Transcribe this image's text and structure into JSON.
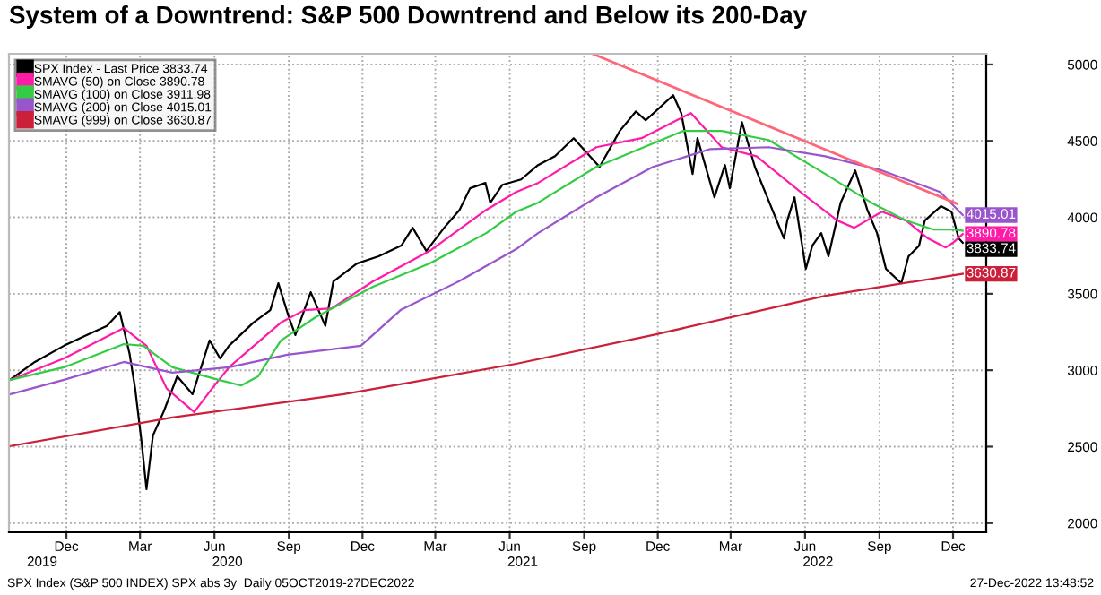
{
  "chart_data": {
    "type": "line",
    "title": "System of a Downtrend: S&P 500 Downtrend and Below its 200-Day",
    "xlim": [
      "2019-10-05",
      "2023-01-25"
    ],
    "ylim": [
      1940,
      5070
    ],
    "xticks": [
      {
        "value": "2019-12-15",
        "label": "Dec"
      },
      {
        "value": "2020-03-15",
        "label": "Mar"
      },
      {
        "value": "2020-06-15",
        "label": "Jun"
      },
      {
        "value": "2020-09-15",
        "label": "Sep"
      },
      {
        "value": "2020-12-15",
        "label": "Dec"
      },
      {
        "value": "2021-03-15",
        "label": "Mar"
      },
      {
        "value": "2021-06-15",
        "label": "Jun"
      },
      {
        "value": "2021-09-15",
        "label": "Sep"
      },
      {
        "value": "2021-12-15",
        "label": "Dec"
      },
      {
        "value": "2022-03-15",
        "label": "Mar"
      },
      {
        "value": "2022-06-15",
        "label": "Jun"
      },
      {
        "value": "2022-09-15",
        "label": "Sep"
      },
      {
        "value": "2022-12-15",
        "label": "Dec"
      }
    ],
    "x2lim": [
      "2019-10-05",
      "2023-01-25"
    ],
    "x2ticks": [
      {
        "value": "2019-11-15",
        "label": "2019"
      },
      {
        "value": "2020-07-01",
        "label": "2020"
      },
      {
        "value": "2021-07-01",
        "label": "2021"
      },
      {
        "value": "2022-07-01",
        "label": "2022"
      }
    ],
    "yticks": [
      2000,
      2500,
      3000,
      3500,
      4000,
      4500,
      5000
    ],
    "grid": true,
    "legend": "top left",
    "marker": "none",
    "line_style": "solid",
    "series": [
      {
        "name": "SPX Index - Last Price 3833.74",
        "color": "#000000",
        "x": [
          "2019-10-07",
          "2019-11-06",
          "2019-12-12",
          "2020-01-09",
          "2020-02-03",
          "2020-02-19",
          "2020-03-02",
          "2020-03-09",
          "2020-03-17",
          "2020-03-23",
          "2020-03-31",
          "2020-04-13",
          "2020-04-30",
          "2020-05-19",
          "2020-06-09",
          "2020-06-22",
          "2020-07-03",
          "2020-08-02",
          "2020-08-23",
          "2020-09-02",
          "2020-09-15",
          "2020-09-23",
          "2020-10-12",
          "2020-10-30",
          "2020-11-09",
          "2020-12-08",
          "2021-01-04",
          "2021-02-01",
          "2021-02-15",
          "2021-03-04",
          "2021-03-26",
          "2021-04-14",
          "2021-04-27",
          "2021-05-16",
          "2021-05-22",
          "2021-06-06",
          "2021-06-29",
          "2021-07-20",
          "2021-08-10",
          "2021-09-02",
          "2021-10-04",
          "2021-10-29",
          "2021-11-18",
          "2021-11-30",
          "2021-12-10",
          "2022-01-03",
          "2022-01-13",
          "2022-01-27",
          "2022-02-02",
          "2022-02-23",
          "2022-03-08",
          "2022-03-14",
          "2022-03-29",
          "2022-04-14",
          "2022-05-02",
          "2022-05-20",
          "2022-05-24",
          "2022-06-02",
          "2022-06-16",
          "2022-06-24",
          "2022-07-05",
          "2022-07-14",
          "2022-07-29",
          "2022-08-16",
          "2022-08-31",
          "2022-09-12",
          "2022-09-23",
          "2022-10-12",
          "2022-10-21",
          "2022-11-03",
          "2022-11-10",
          "2022-11-30",
          "2022-12-13",
          "2022-12-22",
          "2022-12-27"
        ],
        "values": [
          2940,
          3054,
          3160,
          3230,
          3290,
          3380,
          3110,
          2880,
          2527,
          2222,
          2574,
          2726,
          2960,
          2843,
          3195,
          3077,
          3160,
          3311,
          3393,
          3569,
          3347,
          3230,
          3510,
          3290,
          3581,
          3698,
          3745,
          3815,
          3932,
          3780,
          3932,
          4049,
          4190,
          4225,
          4096,
          4213,
          4248,
          4342,
          4400,
          4518,
          4330,
          4565,
          4693,
          4635,
          4682,
          4799,
          4682,
          4284,
          4518,
          4131,
          4342,
          4190,
          4623,
          4330,
          4096,
          3862,
          3979,
          4131,
          3663,
          3815,
          3897,
          3745,
          4096,
          4307,
          4049,
          3897,
          3663,
          3569,
          3745,
          3815,
          3979,
          4073,
          4037,
          3862,
          3833.74
        ],
        "value_labels": [
          null,
          null,
          null,
          null,
          null,
          null,
          null,
          null,
          null,
          null,
          null,
          null,
          null,
          null,
          null,
          null,
          null,
          null,
          null,
          null,
          null,
          null,
          null,
          null,
          null,
          null,
          null,
          null,
          null,
          null,
          null,
          null,
          null,
          null,
          null,
          null,
          null,
          null,
          null,
          null,
          null,
          null,
          null,
          null,
          null,
          null,
          null,
          null,
          null,
          null,
          null,
          null,
          null,
          null,
          null,
          null,
          null,
          null,
          null,
          null,
          null,
          null,
          null,
          null,
          null,
          null,
          null,
          null,
          null,
          null,
          null,
          null,
          null,
          null,
          "3833.74"
        ]
      },
      {
        "name": "SMAVG (50) on Close 3890.78",
        "color": "#ff1aa8",
        "x": [
          "2019-10-07",
          "2019-12-12",
          "2020-02-24",
          "2020-03-23",
          "2020-04-17",
          "2020-05-21",
          "2020-06-12",
          "2020-07-03",
          "2020-09-05",
          "2020-10-04",
          "2020-11-07",
          "2020-12-28",
          "2021-03-08",
          "2021-05-17",
          "2021-06-23",
          "2021-07-20",
          "2021-09-30",
          "2021-11-25",
          "2022-01-25",
          "2022-03-04",
          "2022-04-16",
          "2022-06-12",
          "2022-07-25",
          "2022-08-15",
          "2022-09-18",
          "2022-10-18",
          "2022-11-14",
          "2022-12-06",
          "2022-12-16",
          "2022-12-27"
        ],
        "values": [
          2937,
          3077,
          3276,
          3160,
          2880,
          2726,
          2880,
          3019,
          3311,
          3393,
          3405,
          3581,
          3780,
          4049,
          4166,
          4225,
          4459,
          4518,
          4682,
          4459,
          4400,
          4155,
          3979,
          3932,
          4037,
          3979,
          3862,
          3803,
          3838,
          3890.78
        ],
        "value_labels": [
          null,
          null,
          null,
          null,
          null,
          null,
          null,
          null,
          null,
          null,
          null,
          null,
          null,
          null,
          null,
          null,
          null,
          null,
          null,
          null,
          null,
          null,
          null,
          null,
          null,
          null,
          null,
          null,
          null,
          "3890.78"
        ]
      },
      {
        "name": "SMAVG (100) on Close 3911.98",
        "color": "#33cc44",
        "x": [
          "2019-10-07",
          "2019-12-12",
          "2020-02-24",
          "2020-03-19",
          "2020-04-24",
          "2020-06-20",
          "2020-07-18",
          "2020-08-08",
          "2020-09-05",
          "2020-10-18",
          "2020-12-28",
          "2021-03-08",
          "2021-05-17",
          "2021-06-23",
          "2021-07-20",
          "2021-09-30",
          "2022-01-15",
          "2022-03-04",
          "2022-05-01",
          "2022-07-10",
          "2022-09-05",
          "2022-10-18",
          "2022-11-21",
          "2022-12-16",
          "2022-12-27"
        ],
        "values": [
          2937,
          3019,
          3171,
          3160,
          3019,
          2937,
          2900,
          2960,
          3194,
          3347,
          3546,
          3698,
          3897,
          4037,
          4096,
          4330,
          4565,
          4565,
          4506,
          4284,
          4096,
          3979,
          3920,
          3920,
          3911.98
        ]
      },
      {
        "name": "SMAVG (200) on Close 4015.01",
        "color": "#9955cc",
        "x": [
          "2019-10-07",
          "2019-12-12",
          "2020-02-24",
          "2020-04-24",
          "2020-07-03",
          "2020-09-13",
          "2020-12-13",
          "2021-01-31",
          "2021-04-13",
          "2021-06-23",
          "2021-07-20",
          "2021-09-30",
          "2021-12-09",
          "2022-02-18",
          "2022-05-01",
          "2022-07-10",
          "2022-09-18",
          "2022-11-29",
          "2022-12-27"
        ],
        "values": [
          2843,
          2937,
          3054,
          2984,
          3019,
          3101,
          3160,
          3393,
          3581,
          3792,
          3897,
          4131,
          4330,
          4447,
          4459,
          4400,
          4307,
          4166,
          4015.01
        ],
        "value_labels": [
          null,
          null,
          null,
          null,
          null,
          null,
          null,
          null,
          null,
          null,
          null,
          null,
          null,
          null,
          null,
          null,
          null,
          null,
          "4015.01"
        ]
      },
      {
        "name": "SMAVG (999) on Close 3630.87",
        "color": "#cc1f3a",
        "x": [
          "2019-10-07",
          "2020-04-24",
          "2020-11-22",
          "2021-06-23",
          "2021-12-09",
          "2022-07-10",
          "2022-12-27"
        ],
        "values": [
          2504,
          2691,
          2843,
          3042,
          3230,
          3487,
          3630.87
        ],
        "value_labels": [
          null,
          null,
          null,
          null,
          null,
          null,
          "3630.87"
        ]
      },
      {
        "color": "#ff6677",
        "x": [
          "2021-09-26",
          "2022-12-20"
        ],
        "values": [
          5068,
          4089
        ]
      }
    ],
    "annotations": [
      "SPX Index (S&P 500 INDEX) SPX abs 3y  Daily 05OCT2019-27DEC2022",
      "27-Dec-2022 13:48:52"
    ]
  }
}
